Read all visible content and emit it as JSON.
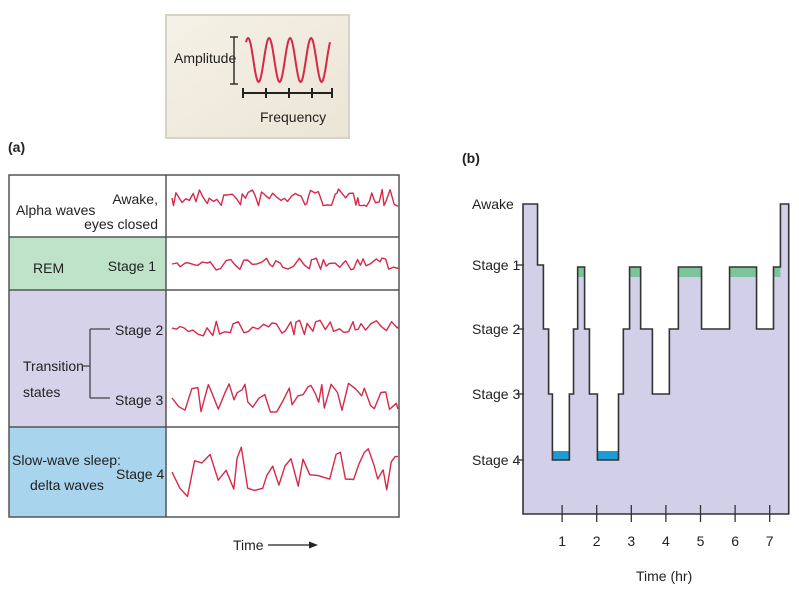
{
  "legend": {
    "amplitude_label": "Amplitude",
    "frequency_label": "Frequency"
  },
  "panel_a": {
    "label": "(a)",
    "rows": [
      {
        "left": "Alpha waves",
        "right_line1": "Awake,",
        "right_line2": "eyes closed",
        "color": "#ffffff"
      },
      {
        "left": "REM",
        "right": "Stage 1",
        "color": "#bfe3c9"
      },
      {
        "left_line1": "Transition",
        "left_line2": "states",
        "stage_a": "Stage 2",
        "stage_b": "Stage 3",
        "color": "#d6d2ea"
      },
      {
        "left_line1": "Slow-wave sleep:",
        "left_line2": "delta waves",
        "right": "Stage 4",
        "color": "#a8d4ee"
      }
    ],
    "time_label": "Time"
  },
  "chart_data": {
    "type": "line",
    "title": "(b)",
    "xlabel": "Time (hr)",
    "ylabel": "",
    "x_ticks": [
      "1",
      "2",
      "3",
      "4",
      "5",
      "6",
      "7"
    ],
    "y_ticks": [
      "Awake",
      "Stage 1",
      "Stage 2",
      "Stage 3",
      "Stage 4"
    ],
    "xlim": [
      -0.13,
      7.55
    ],
    "colors": {
      "fill": "#d2cfe8",
      "rem": "#7cc49a",
      "stage4": "#1e9ad6",
      "line": "#333333"
    },
    "segments": [
      {
        "start": -0.13,
        "end": 0.29,
        "stage": "Awake"
      },
      {
        "start": 0.29,
        "end": 0.46,
        "stage": "Stage 1"
      },
      {
        "start": 0.46,
        "end": 0.61,
        "stage": "Stage 2"
      },
      {
        "start": 0.61,
        "end": 0.72,
        "stage": "Stage 3"
      },
      {
        "start": 0.72,
        "end": 1.21,
        "stage": "Stage 4"
      },
      {
        "start": 1.21,
        "end": 1.33,
        "stage": "Stage 3"
      },
      {
        "start": 1.33,
        "end": 1.45,
        "stage": "Stage 2"
      },
      {
        "start": 1.45,
        "end": 1.65,
        "stage": "REM"
      },
      {
        "start": 1.65,
        "end": 1.79,
        "stage": "Stage 2"
      },
      {
        "start": 1.79,
        "end": 2.02,
        "stage": "Stage 3"
      },
      {
        "start": 2.02,
        "end": 2.63,
        "stage": "Stage 4"
      },
      {
        "start": 2.63,
        "end": 2.77,
        "stage": "Stage 3"
      },
      {
        "start": 2.77,
        "end": 2.95,
        "stage": "Stage 2"
      },
      {
        "start": 2.95,
        "end": 3.27,
        "stage": "REM"
      },
      {
        "start": 3.27,
        "end": 3.61,
        "stage": "Stage 2"
      },
      {
        "start": 3.61,
        "end": 4.1,
        "stage": "Stage 3"
      },
      {
        "start": 4.1,
        "end": 4.36,
        "stage": "Stage 2"
      },
      {
        "start": 4.36,
        "end": 5.03,
        "stage": "REM"
      },
      {
        "start": 5.03,
        "end": 5.84,
        "stage": "Stage 2"
      },
      {
        "start": 5.84,
        "end": 6.62,
        "stage": "REM"
      },
      {
        "start": 6.62,
        "end": 7.11,
        "stage": "Stage 2"
      },
      {
        "start": 7.11,
        "end": 7.31,
        "stage": "REM"
      },
      {
        "start": 7.31,
        "end": 7.55,
        "stage": "Awake"
      }
    ]
  }
}
